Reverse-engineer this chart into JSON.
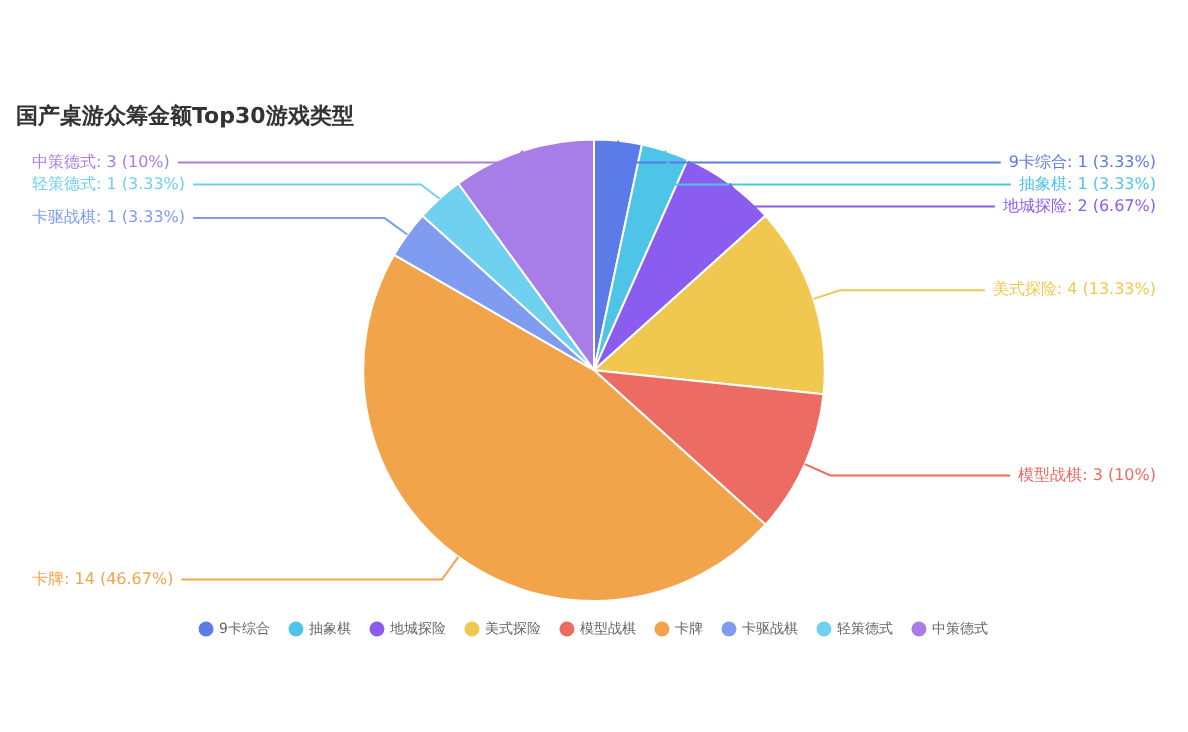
{
  "chart_data": {
    "type": "pie",
    "title": "国产桌游众筹金额Top30游戏类型",
    "categories": [
      "9卡综合",
      "抽象棋",
      "地城探险",
      "美式探险",
      "模型战棋",
      "卡牌",
      "卡驱战棋",
      "轻策德式",
      "中策德式"
    ],
    "values": [
      1,
      1,
      2,
      4,
      3,
      14,
      1,
      1,
      3
    ],
    "colors": [
      "#5b7be8",
      "#4ec5e8",
      "#8b5cf0",
      "#f0c850",
      "#ec6b63",
      "#f2a44a",
      "#7f9cf0",
      "#6fd0ef",
      "#a77ee8"
    ],
    "value_labels": [
      "9卡综合: 1 (3.33%)",
      "抽象棋: 1 (3.33%)",
      "地城探险: 2 (6.67%)",
      "美式探险: 4 (13.33%)",
      "模型战棋: 3 (10%)",
      "卡牌: 14 (46.67%)",
      "卡驱战棋: 1 (3.33%)",
      "轻策德式: 1 (3.33%)",
      "中策德式: 3 (10%)"
    ],
    "legend": "bottom"
  }
}
